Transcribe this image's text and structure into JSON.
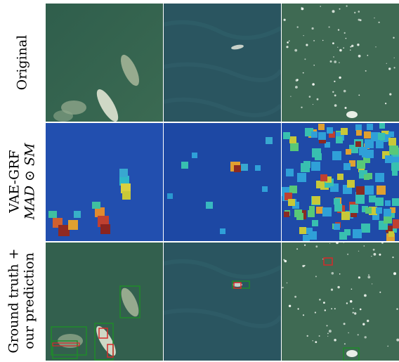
{
  "row_labels": [
    {
      "line1": "Original",
      "line2": ""
    },
    {
      "line1": "VAE-GRF",
      "line2": "MAD ⊙ SM"
    },
    {
      "line1": "Ground truth +",
      "line2": "our prediction"
    }
  ],
  "colors": {
    "ground_truth_box": "#1f8a2a",
    "prediction_box": "#d62a2a",
    "heatmap_low": "#1a3a9a",
    "heatmap_high": "#7a1a1a"
  }
}
